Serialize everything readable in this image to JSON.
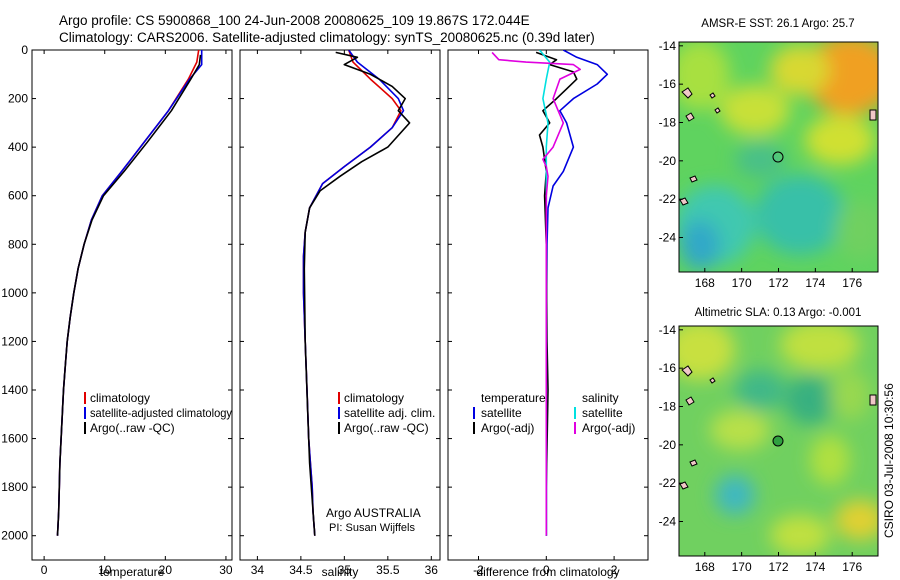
{
  "header": {
    "line1": "Argo profile: CS 5900868_100 24-Jun-2008 20080625_109 19.867S 172.044E",
    "line2": "Climatology: CARS2006. Satellite-adjusted climatology: synTS_20080625.nc (0.39d later)"
  },
  "side_stamp": "CSIRO 03-Jul-2008 10:30:56",
  "colors": {
    "climatology": "#e00000",
    "satellite": "#0000e0",
    "argo": "#000000",
    "cyan": "#00e0e0",
    "magenta": "#e000e0"
  },
  "chart_data": [
    {
      "type": "line",
      "xlabel": "temperature",
      "xlim": [
        -2,
        31
      ],
      "ylim": [
        0,
        2100
      ],
      "xticks": [
        0,
        10,
        20,
        30
      ],
      "yticks": [
        0,
        200,
        400,
        600,
        800,
        1000,
        1200,
        1400,
        1600,
        1800,
        2000
      ],
      "legend": [
        "climatology",
        "satellite-adjusted climatology",
        "Argo(..raw -QC)"
      ],
      "legend_colors": [
        "#e00000",
        "#0000e0",
        "#000000"
      ],
      "series": [
        {
          "name": "climatology",
          "color": "#e00000",
          "x": [
            25.5,
            25.2,
            23.8,
            20.5,
            16.5,
            12.8,
            9.6,
            7.8,
            6.6,
            5.6,
            4.9,
            4.3,
            3.8,
            3.5,
            3.2,
            3.0,
            2.8,
            2.6,
            2.5,
            2.4,
            2.3,
            2.2
          ],
          "y": [
            0,
            50,
            120,
            250,
            380,
            500,
            600,
            700,
            800,
            900,
            1000,
            1100,
            1200,
            1300,
            1400,
            1500,
            1600,
            1700,
            1800,
            1900,
            1950,
            2000
          ]
        },
        {
          "name": "satellite-adjusted climatology",
          "color": "#0000e0",
          "x": [
            26.0,
            26.0,
            24.0,
            20.5,
            16.5,
            12.8,
            9.6,
            7.8,
            6.6,
            5.6,
            4.9,
            4.3,
            3.8,
            3.5,
            3.2,
            3.0,
            2.8,
            2.6,
            2.5,
            2.4,
            2.3,
            2.2
          ],
          "y": [
            0,
            60,
            120,
            250,
            380,
            500,
            600,
            700,
            800,
            900,
            1000,
            1100,
            1200,
            1300,
            1400,
            1500,
            1600,
            1700,
            1800,
            1900,
            1950,
            2000
          ]
        },
        {
          "name": "Argo(..raw -QC)",
          "color": "#000000",
          "x": [
            25.8,
            25.6,
            24.2,
            21.0,
            17.0,
            13.2,
            9.8,
            7.9,
            6.6,
            5.6,
            4.9,
            4.3,
            3.8,
            3.5,
            3.2,
            3.0,
            2.8,
            2.6,
            2.5,
            2.4,
            2.3,
            2.2
          ],
          "y": [
            20,
            60,
            120,
            250,
            380,
            500,
            600,
            700,
            800,
            900,
            1000,
            1100,
            1200,
            1300,
            1400,
            1500,
            1600,
            1700,
            1800,
            1900,
            1950,
            2000
          ]
        }
      ]
    },
    {
      "type": "line",
      "xlabel": "salinity",
      "xlim": [
        33.8,
        36.1
      ],
      "ylim": [
        0,
        2100
      ],
      "xticks": [
        34,
        34.5,
        35,
        35.5,
        36
      ],
      "legend": [
        "climatology",
        "satellite adj. clim.",
        "Argo(..raw -QC)"
      ],
      "legend_colors": [
        "#e00000",
        "#0000e0",
        "#000000"
      ],
      "annotation": [
        "Argo AUSTRALIA",
        "PI: Susan Wijffels"
      ],
      "series": [
        {
          "name": "climatology",
          "color": "#e00000",
          "x": [
            35.05,
            35.1,
            35.3,
            35.55,
            35.65,
            35.55,
            35.3,
            35.0,
            34.75,
            34.6,
            34.55,
            34.53,
            34.53,
            34.55,
            34.57,
            34.59,
            34.61,
            34.63,
            34.64,
            34.65,
            34.66
          ],
          "y": [
            0,
            50,
            120,
            200,
            250,
            320,
            400,
            480,
            550,
            650,
            750,
            850,
            1000,
            1200,
            1400,
            1600,
            1700,
            1800,
            1900,
            1950,
            2000
          ]
        },
        {
          "name": "satellite adj. clim.",
          "color": "#0000e0",
          "x": [
            35.05,
            35.15,
            35.4,
            35.62,
            35.68,
            35.55,
            35.3,
            35.0,
            34.75,
            34.6,
            34.55,
            34.53,
            34.53,
            34.55,
            34.57,
            34.59,
            34.61,
            34.63,
            34.64,
            34.65,
            34.66
          ],
          "y": [
            0,
            50,
            120,
            200,
            250,
            320,
            400,
            480,
            550,
            650,
            750,
            850,
            1000,
            1200,
            1400,
            1600,
            1700,
            1800,
            1900,
            1950,
            2000
          ]
        },
        {
          "name": "Argo(..raw -QC)",
          "color": "#000000",
          "x": [
            34.9,
            35.15,
            35.0,
            35.3,
            35.55,
            35.7,
            35.62,
            35.75,
            35.5,
            35.2,
            34.95,
            34.72,
            34.6,
            34.55,
            34.54,
            34.55,
            34.58,
            34.6,
            34.63,
            34.65,
            34.66
          ],
          "y": [
            10,
            30,
            60,
            100,
            150,
            200,
            250,
            300,
            400,
            460,
            520,
            580,
            650,
            750,
            900,
            1200,
            1500,
            1700,
            1850,
            1950,
            2000
          ]
        }
      ]
    },
    {
      "type": "line",
      "xlabel": "difference from climatology",
      "xlim": [
        -2.9,
        3.0
      ],
      "ylim": [
        0,
        2100
      ],
      "xticks": [
        -2,
        0,
        2
      ],
      "legend_title_left": "temperature",
      "legend_title_right": "salinity",
      "legend_left": [
        "satellite",
        "Argo(-adj)"
      ],
      "legend_left_colors": [
        "#0000e0",
        "#000000"
      ],
      "legend_right": [
        "satellite",
        "Argo(-adj)"
      ],
      "legend_right_colors": [
        "#00e0e0",
        "#e000e0"
      ],
      "series": [
        {
          "name": "temperature satellite",
          "color": "#0000e0",
          "x": [
            0.5,
            0.9,
            1.5,
            1.8,
            1.5,
            0.8,
            0.4,
            0.6,
            0.8,
            0.5,
            0.2,
            0.05,
            0.02,
            0.0,
            0.0,
            0.0
          ],
          "y": [
            0,
            30,
            60,
            100,
            140,
            200,
            250,
            300,
            400,
            500,
            560,
            650,
            800,
            1200,
            1600,
            2000
          ]
        },
        {
          "name": "temperature Argo(-adj)",
          "color": "#000000",
          "x": [
            -0.3,
            0.3,
            0.1,
            0.8,
            0.9,
            0.6,
            0.3,
            -0.1,
            0.1,
            -0.2,
            -0.1,
            0.0,
            -0.05,
            0.0,
            0.02,
            0.05,
            0.0,
            0.0
          ],
          "y": [
            10,
            40,
            60,
            90,
            120,
            160,
            200,
            250,
            300,
            350,
            400,
            500,
            600,
            800,
            1200,
            1400,
            1800,
            2000
          ]
        },
        {
          "name": "salinity satellite",
          "color": "#00e0e0",
          "x": [
            -0.2,
            0.1,
            0.0,
            -0.1,
            0.05,
            0.0,
            0.0,
            0.0,
            0.0
          ],
          "y": [
            0,
            50,
            120,
            200,
            300,
            400,
            600,
            1200,
            2000
          ]
        },
        {
          "name": "salinity Argo(-adj)",
          "color": "#e000e0",
          "x": [
            -1.6,
            -1.4,
            -0.6,
            0.8,
            1.0,
            0.4,
            0.2,
            0.5,
            0.2,
            -0.1,
            0.0,
            0.05,
            0.0,
            0.0
          ],
          "y": [
            10,
            40,
            50,
            60,
            80,
            120,
            200,
            300,
            400,
            450,
            480,
            520,
            600,
            2000
          ]
        }
      ]
    },
    {
      "type": "heatmap",
      "title": "AMSR-E SST: 26.1 Argo: 25.7",
      "xlim": [
        166.6,
        177.4
      ],
      "ylim": [
        -25.8,
        -13.8
      ],
      "xticks": [
        168,
        170,
        172,
        174,
        176
      ],
      "yticks": [
        -14,
        -16,
        -18,
        -20,
        -22,
        -24
      ],
      "marker": {
        "lon": 172.044,
        "lat": -19.867
      }
    },
    {
      "type": "heatmap",
      "title": "Altimetric SLA: 0.13 Argo: -0.001",
      "xlim": [
        166.6,
        177.4
      ],
      "ylim": [
        -25.8,
        -13.8
      ],
      "xticks": [
        168,
        170,
        172,
        174,
        176
      ],
      "yticks": [
        -14,
        -16,
        -18,
        -20,
        -22,
        -24
      ],
      "marker": {
        "lon": 172.044,
        "lat": -19.867
      }
    }
  ]
}
